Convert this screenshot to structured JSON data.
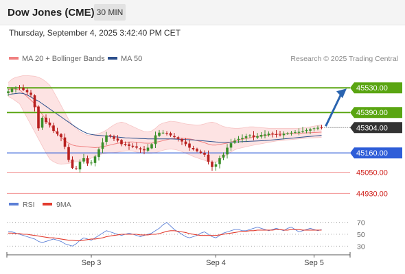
{
  "header": {
    "instrument": "Dow Jones (CME)",
    "timeframe": "30 MIN",
    "datetime": "Thursday, September 4, 2025 3:42:40 PM CET"
  },
  "legend": {
    "bollinger": "MA 20 + Bollinger Bands",
    "ma50": "MA 50",
    "credit": "Research © 2025 Trading Central"
  },
  "colors": {
    "bollinger": "#f08080",
    "band_fill": "#fde3e3",
    "ma50": "#2c4f8c",
    "up": "#3b8f2a",
    "down": "#b8201f",
    "resistance": "#5aa512",
    "support": "#2f5ed8",
    "target_line": "#f08080",
    "target_text": "#d0211c",
    "current": "#333333",
    "arrow": "#2a64b0",
    "rsi": "#5b7fd6",
    "rsi_ma": "#e23b2e"
  },
  "chart_data": [
    {
      "type": "candlestick",
      "instrument": "Dow Jones (CME)",
      "timeframe": "30 MIN",
      "ylim": [
        44900,
        45640
      ],
      "x_ticks": [
        "Sep 3",
        "Sep 4",
        "Sep 5"
      ],
      "x_tick_index": [
        22,
        55,
        81
      ],
      "bars_visible": 85,
      "series": [
        {
          "name": "MA 20 + Bollinger Bands",
          "type": "line"
        },
        {
          "name": "MA 50",
          "type": "line"
        }
      ],
      "closes": [
        45510,
        45525,
        45532,
        45528,
        45518,
        45505,
        45490,
        45420,
        45300,
        45360,
        45335,
        45318,
        45285,
        45268,
        45250,
        45195,
        45120,
        45075,
        45070,
        45110,
        45130,
        45100,
        45105,
        45140,
        45180,
        45220,
        45260,
        45255,
        45240,
        45230,
        45210,
        45205,
        45200,
        45195,
        45190,
        45180,
        45175,
        45190,
        45210,
        45260,
        45275,
        45275,
        45270,
        45260,
        45250,
        45240,
        45225,
        45210,
        45190,
        45180,
        45170,
        45160,
        45150,
        45110,
        45080,
        45095,
        45130,
        45150,
        45190,
        45215,
        45230,
        45240,
        45245,
        45255,
        45260,
        45250,
        45255,
        45262,
        45265,
        45270,
        45268,
        45265,
        45262,
        45270,
        45272,
        45275,
        45278,
        45280,
        45285,
        45290,
        45295,
        45300,
        45303,
        45304
      ],
      "bands_upper": [
        45560,
        45580,
        45590,
        45595,
        45600,
        45600,
        45598,
        45596,
        45590,
        45580,
        45565,
        45545,
        45510,
        45470,
        45430,
        45390,
        45350,
        45320,
        45300,
        45280,
        45270,
        45260,
        45262,
        45265,
        45270,
        45278,
        45290,
        45305,
        45320,
        45330,
        45335,
        45330,
        45320,
        45310,
        45300,
        45290,
        45282,
        45280,
        45285,
        45300,
        45320,
        45330,
        45335,
        45340,
        45338,
        45335,
        45330,
        45325,
        45322,
        45320,
        45318,
        45320,
        45325,
        45332,
        45335,
        45330,
        45320,
        45310,
        45305,
        45302,
        45300,
        45300,
        45302,
        45305,
        45308,
        45308,
        45306,
        45304,
        45302,
        45300,
        45300,
        45300,
        45300,
        45300,
        45300,
        45300,
        45300,
        45300,
        45302,
        45305,
        45308,
        45312,
        45316,
        45320
      ],
      "bands_lower": [
        45480,
        45470,
        45455,
        45440,
        45400,
        45360,
        45320,
        45280,
        45240,
        45200,
        45160,
        45125,
        45110,
        45100,
        45095,
        45098,
        45100,
        45108,
        45110,
        45112,
        45115,
        45120,
        45130,
        45140,
        45150,
        45155,
        45158,
        45160,
        45162,
        45165,
        45168,
        45170,
        45172,
        45170,
        45165,
        45162,
        45160,
        45158,
        45158,
        45162,
        45168,
        45175,
        45180,
        45182,
        45180,
        45175,
        45168,
        45158,
        45150,
        45140,
        45132,
        45125,
        45118,
        45110,
        45105,
        45108,
        45120,
        45135,
        45150,
        45165,
        45178,
        45185,
        45190,
        45195,
        45200,
        45204,
        45208,
        45212,
        45216,
        45220,
        45224,
        45228,
        45230,
        45232,
        45234,
        45236,
        45238,
        45240,
        45242,
        45244,
        45245,
        45246,
        45247,
        45248
      ],
      "ma20": [
        45520,
        45525,
        45522,
        45518,
        45500,
        45480,
        45460,
        45440,
        45410,
        45380,
        45350,
        45320,
        45295,
        45270,
        45250,
        45230,
        45215,
        45205,
        45200,
        45198,
        45196,
        45194,
        45192,
        45190,
        45192,
        45196,
        45200,
        45205,
        45210,
        45215,
        45218,
        45220,
        45222,
        45222,
        45220,
        45218,
        45216,
        45215,
        45216,
        45220,
        45225,
        45230,
        45235,
        45240,
        45242,
        45244,
        45244,
        45242,
        45240,
        45236,
        45230,
        45225,
        45218,
        45210,
        45205,
        45205,
        45208,
        45212,
        45216,
        45222,
        45228,
        45232,
        45238,
        45242,
        45246,
        45250,
        45254,
        45258,
        45260,
        45262,
        45264,
        45266,
        45267,
        45268,
        45269,
        45270,
        45271,
        45272,
        45273,
        45274,
        45275,
        45276,
        45277,
        45278
      ],
      "ma50": [
        45490,
        45495,
        45498,
        45500,
        45498,
        45490,
        45478,
        45465,
        45455,
        45440,
        45425,
        45410,
        45395,
        45380,
        45365,
        45350,
        45335,
        45320,
        45305,
        45292,
        45280,
        45270,
        45265,
        45262,
        45260,
        45258,
        45256,
        45254,
        45252,
        45250,
        45248,
        45246,
        45245,
        45244,
        45243,
        45242,
        45241,
        45240,
        45240,
        45240,
        45240,
        45240,
        45240,
        45240,
        45239,
        45238,
        45237,
        45236,
        45235,
        45234,
        45232,
        45230,
        45228,
        45226,
        45224,
        45222,
        45221,
        45220,
        45220,
        45221,
        45222,
        45223,
        45224,
        45225,
        45226,
        45227,
        45228,
        45229,
        45230,
        45232,
        45234,
        45236,
        45238,
        45240,
        45242,
        45244,
        45246,
        45248,
        45250,
        45252,
        45254,
        45256,
        45258,
        45260
      ],
      "levels": [
        {
          "label": "45530.00",
          "value": 45530,
          "kind": "resistance"
        },
        {
          "label": "45390.00",
          "value": 45390,
          "kind": "resistance"
        },
        {
          "label": "45304.00",
          "value": 45304,
          "kind": "current"
        },
        {
          "label": "45160.00",
          "value": 45160,
          "kind": "pivot"
        },
        {
          "label": "45050.00",
          "value": 45050,
          "kind": "target"
        },
        {
          "label": "44930.00",
          "value": 44930,
          "kind": "target"
        }
      ]
    },
    {
      "type": "line",
      "legend": [
        "RSI",
        "9MA"
      ],
      "ylim": [
        20,
        80
      ],
      "y_ticks": [
        70,
        50,
        30
      ],
      "series": [
        {
          "name": "RSI",
          "values": [
            55,
            54,
            52,
            50,
            48,
            46,
            44,
            42,
            38,
            36,
            38,
            40,
            42,
            40,
            38,
            34,
            32,
            30,
            34,
            40,
            44,
            42,
            40,
            44,
            48,
            52,
            56,
            54,
            52,
            50,
            48,
            50,
            52,
            50,
            48,
            46,
            48,
            50,
            52,
            56,
            60,
            66,
            70,
            64,
            58,
            54,
            50,
            46,
            44,
            46,
            48,
            52,
            54,
            50,
            46,
            44,
            48,
            52,
            54,
            56,
            58,
            58,
            56,
            56,
            58,
            60,
            62,
            60,
            58,
            56,
            58,
            60,
            58,
            56,
            60,
            62,
            58,
            54,
            56,
            58,
            60,
            58,
            56,
            58
          ]
        },
        {
          "name": "9MA",
          "values": [
            52,
            52,
            51,
            51,
            50,
            50,
            49,
            48,
            47,
            46,
            45,
            44,
            44,
            43,
            42,
            41,
            40,
            40,
            39,
            39,
            40,
            41,
            42,
            42,
            43,
            44,
            46,
            47,
            48,
            49,
            50,
            50,
            50,
            50,
            50,
            49,
            49,
            49,
            50,
            50,
            51,
            53,
            55,
            56,
            56,
            55,
            54,
            53,
            51,
            50,
            49,
            48,
            48,
            48,
            48,
            48,
            49,
            50,
            51,
            52,
            53,
            54,
            55,
            55,
            56,
            56,
            57,
            57,
            57,
            57,
            57,
            58,
            58,
            57,
            57,
            58,
            58,
            58,
            57,
            57,
            57,
            57,
            57,
            57
          ]
        }
      ]
    }
  ]
}
